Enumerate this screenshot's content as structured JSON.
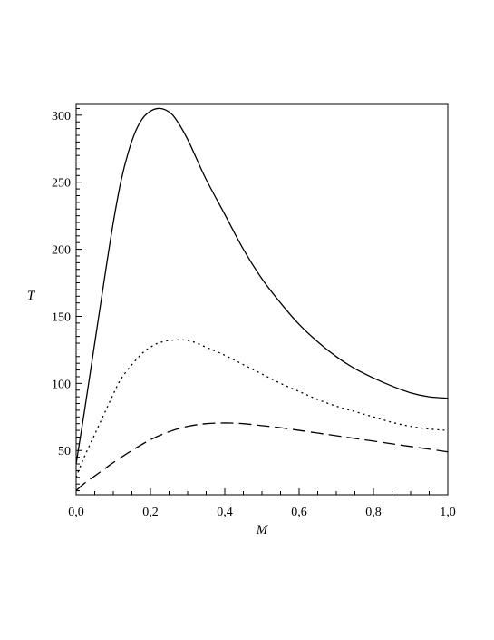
{
  "chart_data": {
    "type": "line",
    "xlabel": "M",
    "ylabel": "T",
    "xlim": [
      0,
      1
    ],
    "ylim": [
      17,
      308
    ],
    "x_ticks": [
      {
        "value": 0.0,
        "label": "0,0"
      },
      {
        "value": 0.2,
        "label": "0,2"
      },
      {
        "value": 0.4,
        "label": "0,4"
      },
      {
        "value": 0.6,
        "label": "0,6"
      },
      {
        "value": 0.8,
        "label": "0,8"
      },
      {
        "value": 1.0,
        "label": "1,0"
      }
    ],
    "y_ticks": [
      {
        "value": 50,
        "label": "50"
      },
      {
        "value": 100,
        "label": "100"
      },
      {
        "value": 150,
        "label": "150"
      },
      {
        "value": 200,
        "label": "200"
      },
      {
        "value": 250,
        "label": "250"
      },
      {
        "value": 300,
        "label": "300"
      }
    ],
    "grid": false,
    "legend": "none",
    "series": [
      {
        "style": "solid",
        "color": "#000000",
        "x": [
          0.0,
          0.02,
          0.05,
          0.08,
          0.1,
          0.12,
          0.14,
          0.16,
          0.18,
          0.2,
          0.22,
          0.24,
          0.26,
          0.28,
          0.3,
          0.32,
          0.35,
          0.4,
          0.45,
          0.5,
          0.55,
          0.6,
          0.65,
          0.7,
          0.75,
          0.8,
          0.85,
          0.9,
          0.95,
          1.0
        ],
        "y": [
          40,
          75,
          130,
          185,
          220,
          250,
          272,
          288,
          298,
          303,
          305,
          304,
          300,
          292,
          282,
          270,
          252,
          226,
          200,
          178,
          160,
          144,
          131,
          120,
          111,
          104,
          98,
          93,
          90,
          89
        ]
      },
      {
        "style": "dotted",
        "color": "#000000",
        "x": [
          0.0,
          0.02,
          0.05,
          0.08,
          0.1,
          0.12,
          0.15,
          0.18,
          0.2,
          0.22,
          0.25,
          0.28,
          0.3,
          0.32,
          0.35,
          0.4,
          0.45,
          0.5,
          0.55,
          0.6,
          0.65,
          0.7,
          0.75,
          0.8,
          0.85,
          0.9,
          0.95,
          1.0
        ],
        "y": [
          30,
          44,
          62,
          80,
          92,
          103,
          114,
          123,
          127,
          130,
          132,
          132.5,
          132,
          130.5,
          127,
          121,
          114,
          107,
          100,
          94,
          88,
          83,
          79,
          75,
          71,
          68,
          66,
          65
        ]
      },
      {
        "style": "dashed",
        "color": "#000000",
        "x": [
          0.0,
          0.02,
          0.05,
          0.08,
          0.1,
          0.15,
          0.2,
          0.25,
          0.3,
          0.35,
          0.4,
          0.45,
          0.5,
          0.55,
          0.6,
          0.65,
          0.7,
          0.75,
          0.8,
          0.85,
          0.9,
          0.95,
          1.0
        ],
        "y": [
          20,
          25,
          31,
          37,
          41,
          50,
          58,
          64,
          68,
          70,
          70.5,
          70,
          68.5,
          67,
          65,
          63,
          61,
          59,
          57,
          55,
          53,
          51,
          49
        ]
      }
    ]
  }
}
